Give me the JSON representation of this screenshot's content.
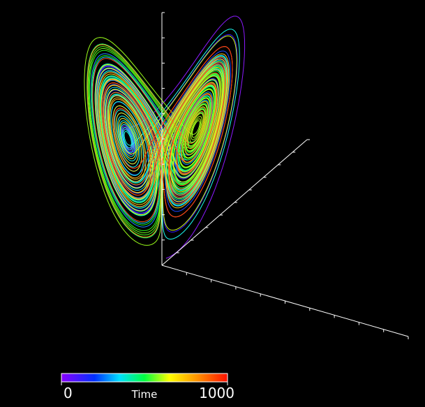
{
  "chart_data": {
    "type": "trajectory3d",
    "colorbar": {
      "label": "Time",
      "lim": [
        0,
        1000
      ],
      "ticks": [
        0,
        1000
      ]
    }
  }
}
